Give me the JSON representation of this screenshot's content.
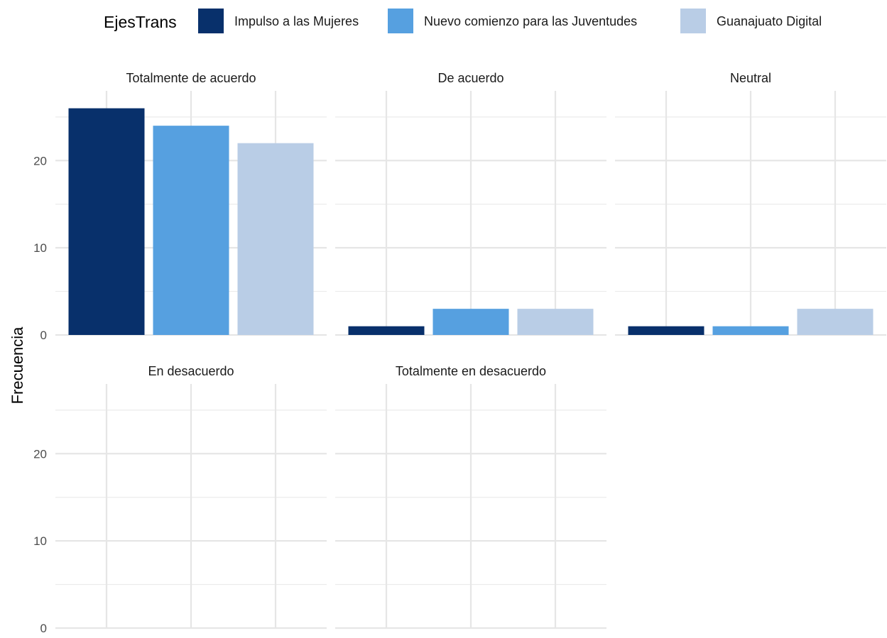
{
  "chart_data": {
    "type": "bar",
    "ylabel": "Frecuencia",
    "legend": {
      "title": "EjesTrans",
      "placement": "top"
    },
    "series": [
      {
        "name": "Impulso a las Mujeres",
        "color": "#08306b"
      },
      {
        "name": "Nuevo comienzo para las Juventudes",
        "color": "#56a0e0"
      },
      {
        "name": "Guanajuato Digital",
        "color": "#b9cde6"
      }
    ],
    "facets": [
      {
        "title": "Totalmente de acuerdo",
        "values": [
          26,
          24,
          22
        ]
      },
      {
        "title": "De acuerdo",
        "values": [
          1,
          3,
          3
        ]
      },
      {
        "title": "Neutral",
        "values": [
          1,
          1,
          3
        ]
      },
      {
        "title": "En desacuerdo",
        "values": [
          0,
          0,
          0
        ]
      },
      {
        "title": "Totalmente en desacuerdo",
        "values": [
          0,
          0,
          0
        ]
      }
    ],
    "ylim": [
      0,
      28
    ],
    "yticks": [
      0,
      10,
      20
    ],
    "grid": true
  }
}
